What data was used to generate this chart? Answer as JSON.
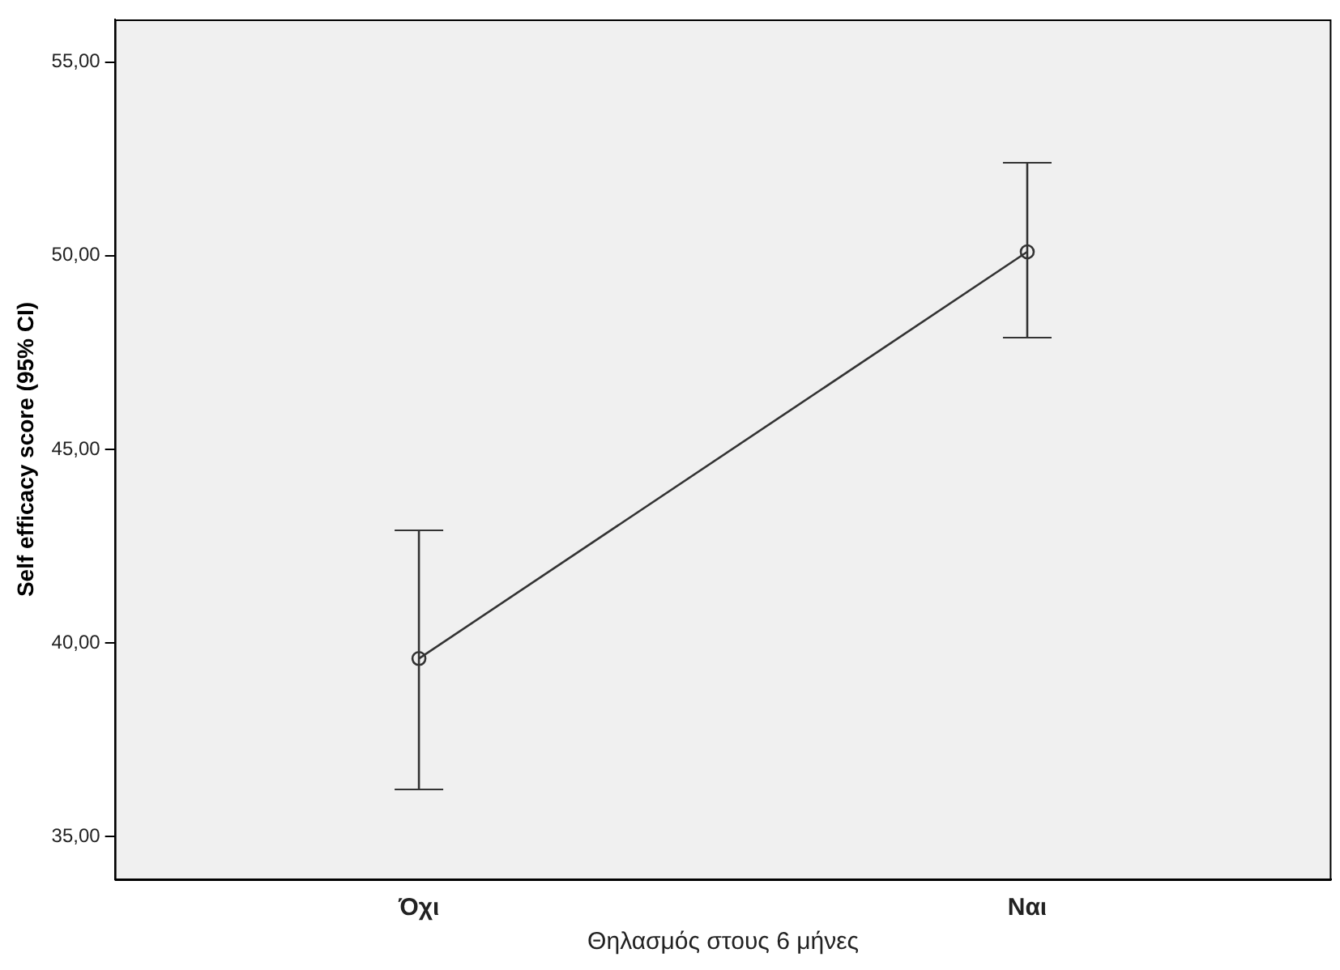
{
  "chart_data": {
    "type": "line",
    "xlabel": "Θηλασμός στους 6 μήνες",
    "ylabel": "Self efficacy score (95% CI)",
    "categories": [
      "Όχι",
      "Ναι"
    ],
    "series": [
      {
        "color": "#333333",
        "values": [
          39.6,
          50.1
        ],
        "errors": [
          [
            36.2,
            42.9
          ],
          [
            47.9,
            52.4
          ]
        ]
      }
    ],
    "ylim": [
      33.9,
      56.1
    ],
    "yticks": [
      {
        "value": 35,
        "label": "35,00"
      },
      {
        "value": 40,
        "label": "40,00"
      },
      {
        "value": 45,
        "label": "45,00"
      },
      {
        "value": 50,
        "label": "50,00"
      },
      {
        "value": 55,
        "label": "55,00"
      }
    ],
    "grid": false,
    "legend": false,
    "marker": "circle",
    "line_style": "solid"
  }
}
